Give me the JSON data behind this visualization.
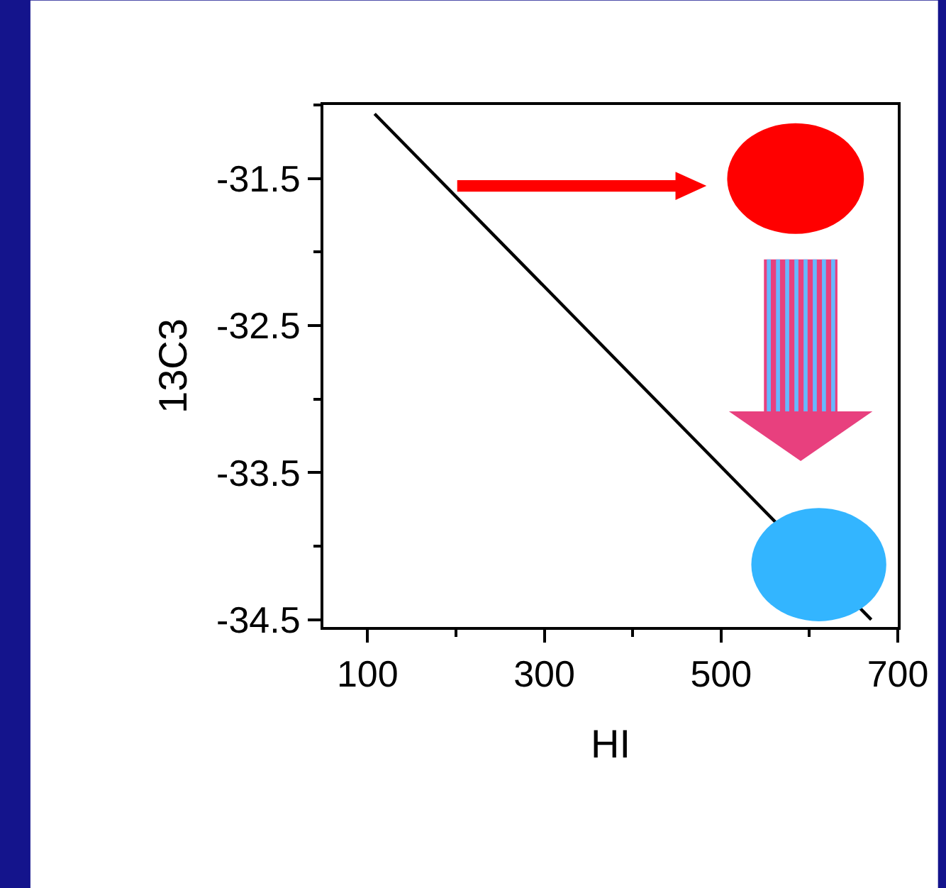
{
  "chart_data": {
    "type": "line",
    "xlabel": "HI",
    "ylabel": "13C3",
    "x": [
      108,
      670
    ],
    "series": [
      {
        "color": "#000000",
        "values": [
          -31.06,
          -34.5
        ]
      }
    ],
    "xlim": [
      50,
      700
    ],
    "ylim": [
      -34.55,
      -31.0
    ],
    "xticks": [
      100,
      {
        "value": 200,
        "label": null
      },
      300,
      {
        "value": 400,
        "label": null
      },
      500,
      {
        "value": 600,
        "label": null
      },
      700
    ],
    "yticks": [
      {
        "value": -31.0,
        "label": null
      },
      -31.5,
      {
        "value": -32.0,
        "label": null
      },
      -32.5,
      {
        "value": -33.0,
        "label": null
      },
      -33.5,
      {
        "value": -34.0,
        "label": null
      },
      -34.5
    ],
    "marker": "none",
    "line_style": "solid"
  }
}
